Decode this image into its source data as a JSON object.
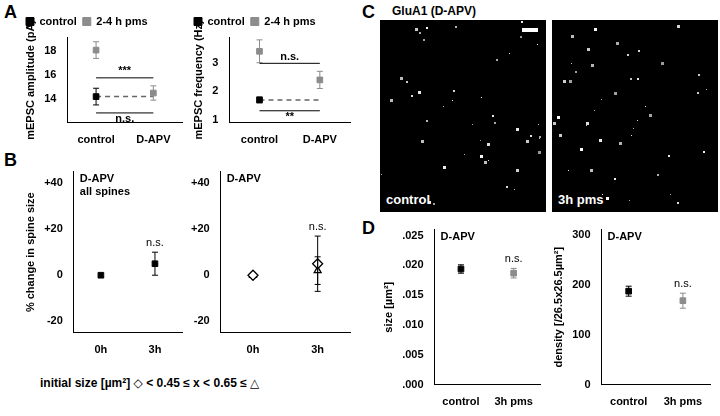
{
  "panel_labels": [
    "A",
    "B",
    "C",
    "D"
  ],
  "image_panel": {
    "title": "GluA1 (D-APV)",
    "images": [
      "control",
      "3h pms"
    ]
  },
  "chart_data": [
    {
      "panel": "A",
      "type": "scatter",
      "categories": [
        "control",
        "D-APV"
      ],
      "y_label": "mEPSC amplitude (pA)",
      "ylim": [
        12,
        19.2
      ],
      "yticks": [
        14,
        16,
        18
      ],
      "legend": "top-left",
      "series": [
        {
          "name": "control",
          "color": "#000000",
          "marker": "square",
          "values": [
            14.2,
            null
          ],
          "errors": [
            0.7,
            null
          ]
        },
        {
          "name": "2-4 h pms",
          "color": "#8c8c8c",
          "marker": "square",
          "values": [
            18.1,
            14.5
          ],
          "errors": [
            0.7,
            0.6
          ]
        }
      ],
      "reference": {
        "value": 14.2,
        "line_style": "dashed"
      },
      "comparisons": [
        {
          "text": "***",
          "from": [
            "2-4 h pms",
            0
          ],
          "to": [
            "2-4 h pms",
            1
          ],
          "side": "above"
        },
        {
          "text": "n.s.",
          "from": [
            "control",
            0
          ],
          "to": [
            "2-4 h pms",
            1
          ],
          "side": "below"
        }
      ]
    },
    {
      "panel": "A",
      "type": "scatter",
      "categories": [
        "control",
        "D-APV"
      ],
      "y_label": "mEPSC frequency (Hz)",
      "ylim": [
        0.9,
        3.9
      ],
      "yticks": [
        1,
        2,
        3
      ],
      "legend": "top-left",
      "series": [
        {
          "name": "control",
          "color": "#000000",
          "marker": "square",
          "values": [
            1.7,
            null
          ],
          "errors": [
            0.1,
            null
          ]
        },
        {
          "name": "2-4 h pms",
          "color": "#8c8c8c",
          "marker": "square",
          "values": [
            3.4,
            2.4
          ],
          "errors": [
            0.4,
            0.3
          ]
        }
      ],
      "reference": {
        "value": 1.7,
        "line_style": "dashed"
      },
      "comparisons": [
        {
          "text": "n.s.",
          "from": [
            "2-4 h pms",
            0
          ],
          "to": [
            "2-4 h pms",
            1
          ],
          "side": "above"
        },
        {
          "text": "**",
          "from": [
            "control",
            0
          ],
          "to": [
            "2-4 h pms",
            1
          ],
          "side": "below"
        }
      ]
    },
    {
      "panel": "B",
      "type": "scatter",
      "title": "D-APV",
      "subtitle": "all spines",
      "categories": [
        "0h",
        "3h"
      ],
      "y_label": "% change in spine size",
      "ylim": [
        -25,
        45
      ],
      "yticks": [
        -20,
        0,
        {
          "value": 20,
          "label": "+20"
        },
        {
          "value": 40,
          "label": "+40"
        }
      ],
      "series": [
        {
          "color": "#000000",
          "marker": "square",
          "values": [
            0,
            5
          ],
          "errors": [
            0,
            5
          ],
          "point_labels": [
            null,
            "n.s."
          ]
        }
      ]
    },
    {
      "panel": "B",
      "type": "scatter",
      "title": "D-APV",
      "categories": [
        "0h",
        "3h"
      ],
      "ylim": [
        -25,
        45
      ],
      "yticks": [
        -20,
        0,
        {
          "value": 20,
          "label": "+20"
        },
        {
          "value": 40,
          "label": "+40"
        }
      ],
      "caption": [
        "initial size [µm²]",
        "◇ < 0.45 ≤ x < 0.65 ≤ △"
      ],
      "series": [
        {
          "color": "#000000",
          "marker": "diamond",
          "values": [
            0,
            5
          ],
          "errors": [
            0,
            12
          ],
          "point_labels": [
            null,
            "n.s."
          ]
        },
        {
          "color": "#000000",
          "marker": "triangle",
          "values": [
            0,
            2
          ],
          "errors": [
            0,
            6
          ]
        }
      ]
    },
    {
      "panel": "D",
      "type": "scatter",
      "title": "D-APV",
      "categories": [
        "control",
        "3h pms"
      ],
      "y_label": "size [µm²]",
      "ylim": [
        0,
        0.026
      ],
      "yticks": [
        {
          "value": 0,
          "label": ".000"
        },
        {
          "value": 0.005,
          "label": ".005"
        },
        {
          "value": 0.01,
          "label": ".010"
        },
        {
          "value": 0.015,
          "label": ".015"
        },
        {
          "value": 0.02,
          "label": ".020"
        },
        {
          "value": 0.025,
          "label": ".025"
        }
      ],
      "marker": "square",
      "colors": [
        "#000000",
        "#8c8c8c"
      ],
      "values": [
        0.0194,
        0.0187
      ],
      "errors": [
        0.0007,
        0.0008
      ],
      "point_labels": [
        null,
        "n.s."
      ]
    },
    {
      "panel": "D",
      "type": "scatter",
      "title": "D-APV",
      "categories": [
        "control",
        "3h pms"
      ],
      "y_label": "density [/26.5x26.5µm²]",
      "ylim": [
        0,
        310
      ],
      "yticks": [
        0,
        100,
        200,
        300
      ],
      "marker": "square",
      "colors": [
        "#000000",
        "#8c8c8c"
      ],
      "values": [
        187,
        168
      ],
      "errors": [
        10,
        15
      ],
      "point_labels": [
        null,
        "n.s."
      ]
    }
  ]
}
